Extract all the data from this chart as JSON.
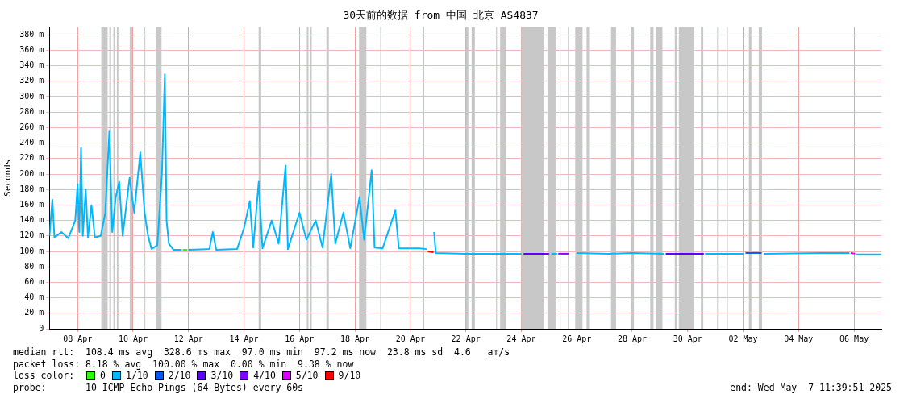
{
  "chart_data": {
    "type": "line",
    "title": "30天前的数据 from 中国 北京 AS4837",
    "ylabel": "Seconds",
    "xlim": [
      "2025-04-07T11:39",
      "2025-05-07T11:39"
    ],
    "xticks": [
      {
        "value": "2025-04-08T12:00",
        "label": "08 Apr"
      },
      {
        "value": "2025-04-10T12:00",
        "label": "10 Apr"
      },
      {
        "value": "2025-04-12T12:00",
        "label": "12 Apr"
      },
      {
        "value": "2025-04-14T12:00",
        "label": "14 Apr"
      },
      {
        "value": "2025-04-16T12:00",
        "label": "16 Apr"
      },
      {
        "value": "2025-04-18T12:00",
        "label": "18 Apr"
      },
      {
        "value": "2025-04-20T12:00",
        "label": "20 Apr"
      },
      {
        "value": "2025-04-22T12:00",
        "label": "22 Apr"
      },
      {
        "value": "2025-04-24T12:00",
        "label": "24 Apr"
      },
      {
        "value": "2025-04-26T12:00",
        "label": "26 Apr"
      },
      {
        "value": "2025-04-28T12:00",
        "label": "28 Apr"
      },
      {
        "value": "2025-04-30T12:00",
        "label": "30 Apr"
      },
      {
        "value": "2025-05-02T12:00",
        "label": "02 May"
      },
      {
        "value": "2025-05-04T12:00",
        "label": "04 May"
      },
      {
        "value": "2025-05-06T12:00",
        "label": "06 May"
      }
    ],
    "ylim": [
      0,
      390
    ],
    "yticks": [
      0,
      {
        "value": 20,
        "label": "20 m"
      },
      {
        "value": 40,
        "label": "40 m"
      },
      {
        "value": 60,
        "label": "60 m"
      },
      {
        "value": 80,
        "label": "80 m"
      },
      {
        "value": 100,
        "label": "100 m"
      },
      {
        "value": 120,
        "label": "120 m"
      },
      {
        "value": 140,
        "label": "140 m"
      },
      {
        "value": 160,
        "label": "160 m"
      },
      {
        "value": 180,
        "label": "180 m"
      },
      {
        "value": 200,
        "label": "200 m"
      },
      {
        "value": 220,
        "label": "220 m"
      },
      {
        "value": 240,
        "label": "240 m"
      },
      {
        "value": 260,
        "label": "260 m"
      },
      {
        "value": 280,
        "label": "280 m"
      },
      {
        "value": 300,
        "label": "300 m"
      },
      {
        "value": 320,
        "label": "320 m"
      },
      {
        "value": 340,
        "label": "340 m"
      },
      {
        "value": 360,
        "label": "360 m"
      },
      {
        "value": 380,
        "label": "380 m"
      }
    ],
    "grid": true,
    "legend": "bottom",
    "legend_title": "loss color:",
    "marker": "none",
    "line_style": "solid",
    "series": [
      {
        "name": "0",
        "color": "#26ff00",
        "x": [
          "2025-04-12T07:00",
          "2025-04-12T11:00"
        ],
        "values": [
          102,
          102
        ]
      },
      {
        "name": "1/10",
        "color": "#00b8ff",
        "x": [
          "2025-04-07T11:39",
          "2025-04-07T14:10",
          "2025-04-07T16:00",
          "2025-04-07T22:00",
          "2025-04-08T04:00",
          "2025-04-08T10:00",
          "2025-04-08T12:00",
          "2025-04-08T13:30",
          "2025-04-08T15:00",
          "2025-04-08T16:30",
          "2025-04-08T19:00",
          "2025-04-08T21:00",
          "2025-04-09T00:00",
          "2025-04-09T03:00",
          "2025-04-09T08:00",
          "2025-04-09T12:00",
          "2025-04-09T15:30",
          "2025-04-09T18:00",
          "2025-04-09T21:00",
          "2025-04-10T00:00",
          "2025-04-10T03:00",
          "2025-04-10T09:00",
          "2025-04-10T13:00",
          "2025-04-10T18:15",
          "2025-04-10T22:00",
          "2025-04-11T01:00",
          "2025-04-11T04:00",
          "2025-04-11T09:00",
          "2025-04-11T13:00",
          "2025-04-11T15:30",
          "2025-04-11T17:00",
          "2025-04-11T19:00",
          "2025-04-11T23:00",
          "2025-04-12T06:00",
          "2025-04-12T09:00",
          "2025-04-12T12:00",
          "2025-04-13T06:00",
          "2025-04-13T09:00",
          "2025-04-13T12:00",
          "2025-04-14T06:00",
          "2025-04-14T12:00",
          "2025-04-14T17:00",
          "2025-04-14T20:00",
          "2025-04-15T00:45",
          "2025-04-15T04:00",
          "2025-04-15T12:00",
          "2025-04-15T18:00",
          "2025-04-16T00:00",
          "2025-04-16T02:00",
          "2025-04-16T12:00",
          "2025-04-16T18:00",
          "2025-04-17T02:00",
          "2025-04-17T08:00",
          "2025-04-17T15:30",
          "2025-04-17T19:00",
          "2025-04-18T02:00",
          "2025-04-18T08:00",
          "2025-04-18T16:00",
          "2025-04-18T20:00",
          "2025-04-19T02:30",
          "2025-04-19T05:00",
          "2025-04-19T12:00",
          "2025-04-19T23:00",
          "2025-04-20T02:00",
          "2025-04-20T20:00",
          "2025-04-21T02:00",
          "2025-04-21T06:30",
          "2025-04-21T08:30",
          "2025-04-21T10:00",
          "2025-04-22T12:00",
          "2025-04-24T12:00",
          "2025-04-24T18:00",
          "2025-04-25T14:00",
          "2025-04-25T19:00",
          "2025-04-26T00:00",
          "2025-04-26T12:00",
          "2025-04-27T16:00",
          "2025-04-28T12:00",
          "2025-04-29T16:00",
          "2025-04-30T06:00",
          "2025-05-01T03:00",
          "2025-05-02T12:00",
          "2025-05-02T20:00",
          "2025-05-03T06:00",
          "2025-05-05T12:00",
          "2025-05-06T08:00",
          "2025-05-06T11:00",
          "2025-05-06T14:00",
          "2025-05-07T11:39"
        ],
        "values": [
          120,
          167,
          118,
          125,
          117,
          140,
          187,
          125,
          234,
          120,
          180,
          118,
          160,
          118,
          120,
          150,
          256,
          125,
          170,
          190,
          120,
          195,
          150,
          228,
          150,
          120,
          103,
          108,
          200,
          329,
          140,
          110,
          102,
          102,
          null,
          102,
          103,
          125,
          102,
          103,
          130,
          165,
          105,
          190,
          104,
          140,
          110,
          211,
          103,
          150,
          115,
          140,
          105,
          200,
          110,
          150,
          104,
          170,
          115,
          205,
          105,
          104,
          153,
          104,
          104,
          103,
          null,
          125,
          98,
          97,
          97,
          null,
          97,
          97,
          null,
          98,
          97,
          98,
          97,
          null,
          97,
          97,
          null,
          97,
          98,
          98,
          null,
          96,
          96
        ]
      },
      {
        "name": "2/10",
        "color": "#0059ff",
        "x": [
          "2025-05-02T14:00",
          "2025-05-03T04:00"
        ],
        "values": [
          98,
          98
        ]
      },
      {
        "name": "3/10",
        "color": "#5e00ff",
        "x": [
          "2025-04-24T14:00",
          "2025-04-25T12:00",
          null,
          "2025-04-29T17:00",
          "2025-05-01T02:00"
        ],
        "values": [
          97,
          97,
          null,
          97,
          97
        ]
      },
      {
        "name": "4/10",
        "color": "#7e00ff",
        "x": [
          "2025-04-25T20:00",
          "2025-04-26T05:00"
        ],
        "values": [
          97,
          97
        ]
      },
      {
        "name": "5/10",
        "color": "#dd00ff",
        "x": [
          "2025-05-06T09:00",
          "2025-05-06T13:00"
        ],
        "values": [
          98,
          97
        ]
      },
      {
        "name": "9/10",
        "color": "#ff0000",
        "x": [
          "2025-04-21T03:00",
          "2025-04-21T08:00"
        ],
        "values": [
          100,
          99
        ]
      }
    ],
    "bands": [
      {
        "axis": "x",
        "from": "2025-04-09T08:30",
        "to": "2025-04-09T14:00",
        "color": "#c8c8c8"
      },
      {
        "axis": "x",
        "from": "2025-04-09T15:30",
        "to": "2025-04-09T17:00",
        "color": "#c8c8c8"
      },
      {
        "axis": "x",
        "from": "2025-04-09T19:00",
        "to": "2025-04-09T20:30",
        "color": "#c8c8c8"
      },
      {
        "axis": "x",
        "from": "2025-04-09T22:00",
        "to": "2025-04-09T23:20",
        "color": "#c8c8c8"
      },
      {
        "axis": "x",
        "from": "2025-04-10T09:10",
        "to": "2025-04-10T11:20",
        "color": "#c8c8c8"
      },
      {
        "axis": "x",
        "from": "2025-04-10T13:25",
        "to": "2025-04-10T14:05",
        "color": "#c8c8c8"
      },
      {
        "axis": "x",
        "from": "2025-04-10T21:55",
        "to": "2025-04-10T22:35",
        "color": "#c8c8c8"
      },
      {
        "axis": "x",
        "from": "2025-04-11T07:50",
        "to": "2025-04-11T12:40",
        "color": "#c8c8c8"
      },
      {
        "axis": "x",
        "from": "2025-04-15T00:40",
        "to": "2025-04-15T02:55",
        "color": "#c8c8c8"
      },
      {
        "axis": "x",
        "from": "2025-04-16T18:25",
        "to": "2025-04-16T19:50",
        "color": "#c8c8c8"
      },
      {
        "axis": "x",
        "from": "2025-04-16T21:10",
        "to": "2025-04-16T22:35",
        "color": "#c8c8c8"
      },
      {
        "axis": "x",
        "from": "2025-04-17T11:20",
        "to": "2025-04-17T13:25",
        "color": "#c8c8c8"
      },
      {
        "axis": "x",
        "from": "2025-04-18T15:35",
        "to": "2025-04-18T21:55",
        "color": "#c8c8c8"
      },
      {
        "axis": "x",
        "from": "2025-04-19T09:55",
        "to": "2025-04-19T10:35",
        "color": "#c8c8c8"
      },
      {
        "axis": "x",
        "from": "2025-04-20T22:35",
        "to": "2025-04-21T00:00",
        "color": "#c8c8c8"
      },
      {
        "axis": "x",
        "from": "2025-04-22T12:00",
        "to": "2025-04-22T14:10",
        "color": "#c8c8c8"
      },
      {
        "axis": "x",
        "from": "2025-04-22T17:00",
        "to": "2025-04-22T19:50",
        "color": "#c8c8c8"
      },
      {
        "axis": "x",
        "from": "2025-04-23T14:10",
        "to": "2025-04-23T15:00",
        "color": "#c8c8c8"
      },
      {
        "axis": "x",
        "from": "2025-04-23T17:40",
        "to": "2025-04-23T22:35",
        "color": "#c8c8c8"
      },
      {
        "axis": "x",
        "from": "2025-04-24T12:00",
        "to": "2025-04-25T07:50",
        "color": "#c8c8c8"
      },
      {
        "axis": "x",
        "from": "2025-04-25T10:40",
        "to": "2025-04-25T17:40",
        "color": "#c8c8c8"
      },
      {
        "axis": "x",
        "from": "2025-04-25T21:10",
        "to": "2025-04-25T22:00",
        "color": "#c8c8c8"
      },
      {
        "axis": "x",
        "from": "2025-04-26T04:20",
        "to": "2025-04-26T05:00",
        "color": "#c8c8c8"
      },
      {
        "axis": "x",
        "from": "2025-04-26T10:40",
        "to": "2025-04-26T17:00",
        "color": "#c8c8c8"
      },
      {
        "axis": "x",
        "from": "2025-04-26T20:30",
        "to": "2025-04-26T23:25",
        "color": "#c8c8c8"
      },
      {
        "axis": "x",
        "from": "2025-04-27T17:40",
        "to": "2025-04-27T22:00",
        "color": "#c8c8c8"
      },
      {
        "axis": "x",
        "from": "2025-04-28T11:25",
        "to": "2025-04-28T13:30",
        "color": "#c8c8c8"
      },
      {
        "axis": "x",
        "from": "2025-04-29T03:35",
        "to": "2025-04-29T06:25",
        "color": "#c8c8c8"
      },
      {
        "axis": "x",
        "from": "2025-04-29T08:35",
        "to": "2025-04-29T14:10",
        "color": "#c8c8c8"
      },
      {
        "axis": "x",
        "from": "2025-04-30T00:50",
        "to": "2025-04-30T02:55",
        "color": "#c8c8c8"
      },
      {
        "axis": "x",
        "from": "2025-04-30T04:20",
        "to": "2025-04-30T17:40",
        "color": "#c8c8c8"
      },
      {
        "axis": "x",
        "from": "2025-04-30T23:25",
        "to": "2025-05-01T01:30",
        "color": "#c8c8c8"
      },
      {
        "axis": "x",
        "from": "2025-05-01T13:30",
        "to": "2025-05-01T14:10",
        "color": "#c8c8c8"
      },
      {
        "axis": "x",
        "from": "2025-05-01T22:00",
        "to": "2025-05-01T22:40",
        "color": "#c8c8c8"
      },
      {
        "axis": "x",
        "from": "2025-05-02T17:00",
        "to": "2025-05-02T19:10",
        "color": "#c8c8c8"
      },
      {
        "axis": "x",
        "from": "2025-05-03T01:30",
        "to": "2025-05-03T04:20",
        "color": "#c8c8c8"
      }
    ],
    "annotations": [
      "median rtt:  108.4 ms avg  328.6 ms max  97.0 ms min  97.2 ms now  23.8 ms sd  4.6   am/s",
      "packet loss: 8.18 % avg  100.00 % max  0.00 % min  9.38 % now",
      "probe:       10 ICMP Echo Pings (64 Bytes) every 60s",
      "end: Wed May  7 11:39:51 2025"
    ]
  }
}
